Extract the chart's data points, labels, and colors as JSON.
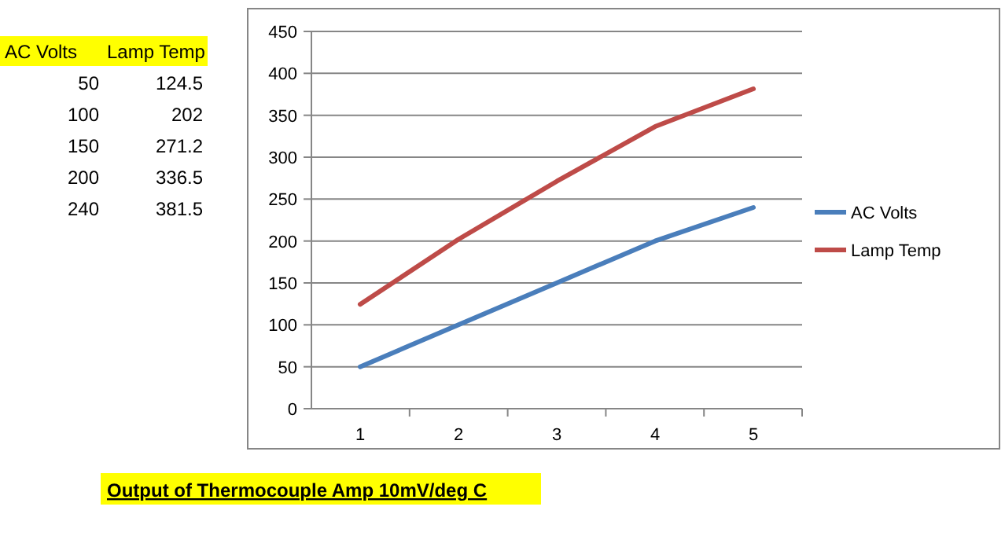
{
  "chart_data": [
    {
      "type": "other",
      "annotations": [
        "AC Volts",
        "Lamp Temp",
        "50",
        "124.5",
        "100",
        "202",
        "150",
        "271.2",
        "200",
        "336.5",
        "240",
        "381.5"
      ]
    },
    {
      "type": "line",
      "categories": [
        "1",
        "2",
        "3",
        "4",
        "5"
      ],
      "series": [
        {
          "name": "AC Volts",
          "color": "#4a7ebb",
          "values": [
            50,
            100,
            150,
            200,
            240
          ]
        },
        {
          "name": "Lamp Temp",
          "color": "#be4b48",
          "values": [
            124.5,
            202,
            271.2,
            336.5,
            381.5
          ]
        }
      ],
      "ylim": [
        0,
        450
      ],
      "yticks": [
        0,
        50,
        100,
        150,
        200,
        250,
        300,
        350,
        400,
        450
      ],
      "grid": "y",
      "legend": "right",
      "marker": "none",
      "line_style": "solid",
      "annotations": [
        "Output of Thermocouple Amp 10mV/deg C"
      ]
    }
  ]
}
